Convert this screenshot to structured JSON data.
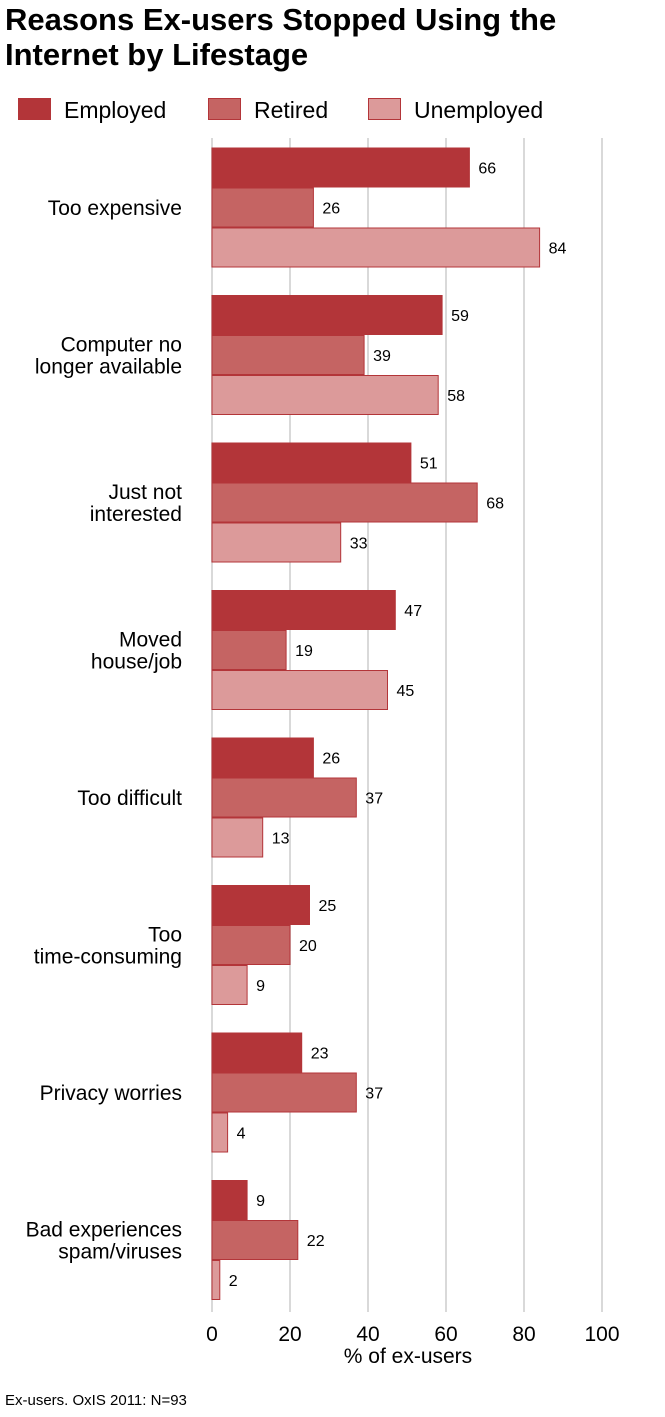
{
  "title": "Reasons Ex-users Stopped Using the Internet by Lifestage",
  "footnote": "Ex-users. OxIS 2011: N=93",
  "colors": {
    "employed": "#b33539",
    "retired": "#c56463",
    "unemployed": "#dc9a9a",
    "grid": "#d9d9d9"
  },
  "chart_data": {
    "type": "bar",
    "orientation": "horizontal",
    "title": "Reasons Ex-users Stopped Using the Internet by Lifestage",
    "xlabel": "% of ex-users",
    "ylabel": "",
    "xlim": [
      0,
      100
    ],
    "xticks": [
      0,
      20,
      40,
      60,
      80,
      100
    ],
    "grid": true,
    "legend_position": "top",
    "categories": [
      [
        "Too expensive"
      ],
      [
        "Computer no",
        "longer available"
      ],
      [
        "Just not",
        "interested"
      ],
      [
        "Moved",
        "house/job"
      ],
      [
        "Too difficult"
      ],
      [
        "Too",
        "time-consuming"
      ],
      [
        "Privacy worries"
      ],
      [
        "Bad experiences",
        "spam/viruses"
      ]
    ],
    "series": [
      {
        "name": "Employed",
        "color": "#b33539",
        "values": [
          66,
          59,
          51,
          47,
          26,
          25,
          23,
          9
        ]
      },
      {
        "name": "Retired",
        "color": "#c56463",
        "values": [
          26,
          39,
          68,
          19,
          37,
          20,
          37,
          22
        ]
      },
      {
        "name": "Unemployed",
        "color": "#dc9a9a",
        "values": [
          84,
          58,
          33,
          45,
          13,
          9,
          4,
          2
        ]
      }
    ]
  }
}
